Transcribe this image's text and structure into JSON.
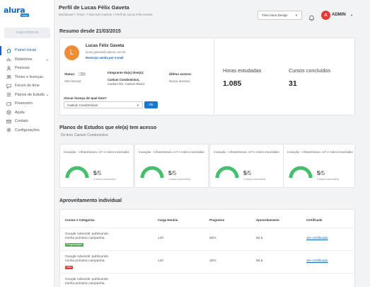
{
  "brand": {
    "word": "alura",
    "tag": "corp",
    "company_logo": "Logo empresa"
  },
  "colors": {
    "accent": "#1565c0",
    "ok_button": "#1976d2",
    "gauge": "#43c06b",
    "badge_green": "#4caf50",
    "badge_red": "#e53935",
    "avatar_user": "#ef8d37",
    "avatar_admin": "#e53935"
  },
  "sidebar": {
    "items": [
      {
        "label": "Painel inicial",
        "icon": "home-icon",
        "active": true,
        "has_children": false
      },
      {
        "label": "Relatórios",
        "icon": "chart-icon",
        "active": false,
        "has_children": true
      },
      {
        "label": "Pessoas",
        "icon": "person-icon",
        "active": false,
        "has_children": false
      },
      {
        "label": "Times e licenças",
        "icon": "users-icon",
        "active": false,
        "has_children": false
      },
      {
        "label": "Fórum do time",
        "icon": "chat-icon",
        "active": false,
        "has_children": false
      },
      {
        "label": "Planos de Estudo",
        "icon": "list-icon",
        "active": false,
        "has_children": true
      },
      {
        "label": "Financeiro",
        "icon": "wallet-icon",
        "active": false,
        "has_children": false
      },
      {
        "label": "Ajuda",
        "icon": "help-icon",
        "active": false,
        "has_children": false
      },
      {
        "label": "Contato",
        "icon": "mail-icon",
        "active": false,
        "has_children": false
      },
      {
        "label": "Configurações",
        "icon": "gear-icon",
        "active": false,
        "has_children": false
      }
    ]
  },
  "header": {
    "title": "Perfil de Lucas Félix Gaveta",
    "breadcrumb": "Dashboard > Times - Financeiro Caelum > Perfil de Lucas Félix Gaveta",
    "site_select": "Time Alura Design",
    "admin_initial": "A",
    "admin_label": "ADMIN"
  },
  "summary": {
    "title": "Resumo desde 21/03/2015",
    "user": {
      "initial": "L",
      "name": "Lucas Félix Gaveta",
      "email": "lucas.gaveta@caelum.com.br",
      "reset_link": "Reenviar senha por e-mail"
    },
    "status_label": "Status:",
    "status_value": "Sem licença",
    "teams_label": "Integrante do(s) time(s):",
    "teams_value_1": "Caelum Condomínios,",
    "teams_value_2": "Caelum RH, Caelum React.",
    "last_access_label": "Último acesso:",
    "last_access_value": "Nunca acessou",
    "license_label": "Alocar licença de qual time?",
    "license_select": "Caelum Condomínios",
    "ok_label": "Ok",
    "hours_label": "Horas estudadas",
    "hours_value": "1.085",
    "courses_label": "Cursos concluídos",
    "courses_value": "31"
  },
  "plans": {
    "title": "Planos de Estudos que ele(a) tem acesso",
    "subtitle": "Do time Caelum Condomínios",
    "items": [
      {
        "name": "Inovação - Infraestrutura, IoT e redes mescladas",
        "done": "5",
        "total": "/5",
        "done_label": "Cursos concluídos",
        "progress": 1.0
      },
      {
        "name": "Inovação - Infraestrutura, IoT e redes mescladas",
        "done": "5",
        "total": "/5",
        "done_label": "Cursos concluídos",
        "progress": 1.0
      },
      {
        "name": "Inovação - Infraestrutura, IoT e redes mescladas",
        "done": "5",
        "total": "/5",
        "done_label": "Cursos concluídos",
        "progress": 1.0
      },
      {
        "name": "Inovação - Infraestrutura, IoT e redes mescladas",
        "done": "5",
        "total": "/5",
        "done_label": "Cursos concluídos",
        "progress": 1.0
      }
    ]
  },
  "performance": {
    "title": "Aproveitamento individual",
    "columns": {
      "course": "Cursos e Categorias",
      "hours": "Carga Horária",
      "progress": "Progresso",
      "score": "Aproveitamento",
      "cert": "Certificado"
    },
    "rows": [
      {
        "course_1": "Google Adwords: publicando",
        "course_2": "minha primeira campanha.",
        "badge": "Programação",
        "badge_color": "#4caf50",
        "hours": "14h",
        "progress": "50%",
        "score": "92,5",
        "cert": "Ver certificado"
      },
      {
        "course_1": "Google Adwords: publicando",
        "course_2": "minha primeira campanha.",
        "badge": "Infra",
        "badge_color": "#e53935",
        "hours": "14h",
        "progress": "20%",
        "score": "90,5",
        "cert": "Ver certificado"
      },
      {
        "course_1": "Google Adwords: publicando",
        "course_2": "minha primeira campanha.",
        "badge": "",
        "badge_color": "#4caf50",
        "hours": "",
        "progress": "",
        "score": "",
        "cert": ""
      }
    ]
  }
}
